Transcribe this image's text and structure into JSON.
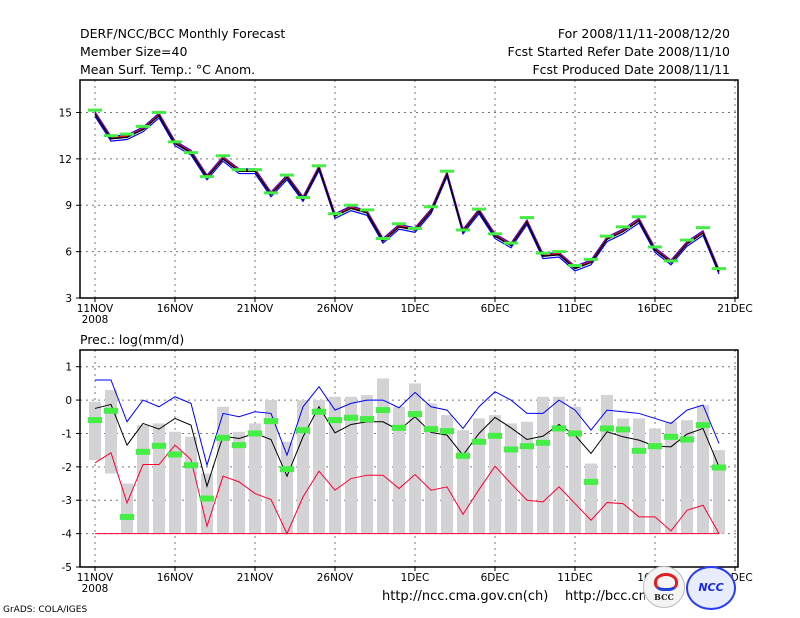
{
  "header": {
    "title": "DERF/NCC/BCC Monthly Forecast",
    "member_size": "Member Size=40",
    "variable": "Mean Surf. Temp.: °C Anom.",
    "period": "For 2008/11/11-2008/12/20",
    "start_date": "Fcst Started Refer Date 2008/11/10",
    "produced_date": "Fcst Produced Date 2008/11/11"
  },
  "footer": {
    "url_ncc": "http://ncc.cma.gov.cn(ch)",
    "url_bcc": "http://bcc.cma.gov.cn",
    "credit": "GrADS: COLA/IGES",
    "logo_bcc": "BCC",
    "logo_ncc": "NCC"
  },
  "colors": {
    "max": "#0000ff",
    "min": "#ff0033",
    "mean": "#000000",
    "obs": "#44ee44",
    "spread": "#d3d3d6"
  },
  "chart_data": [
    {
      "type": "line",
      "title": "Mean Surf. Temp.: °C Anom.",
      "x_ticks": [
        "11NOV",
        "16NOV",
        "21NOV",
        "26NOV",
        "1DEC",
        "6DEC",
        "11DEC",
        "16DEC",
        "21DEC"
      ],
      "x_tick_days": [
        0,
        5,
        10,
        15,
        20,
        25,
        30,
        35,
        40
      ],
      "year_label": "2008",
      "y_ticks": [
        3,
        6,
        9,
        12,
        15
      ],
      "ylim": [
        3,
        17.1
      ],
      "grid": true,
      "spread": 0.15,
      "series": [
        {
          "name": "ensemble-mean",
          "values": [
            14.9,
            13.3,
            13.4,
            13.9,
            14.8,
            13.0,
            12.4,
            10.8,
            12.0,
            11.2,
            11.2,
            9.7,
            10.8,
            9.4,
            11.4,
            8.3,
            8.8,
            8.5,
            6.7,
            7.6,
            7.4,
            8.6,
            11.0,
            7.3,
            8.6,
            7.0,
            6.4,
            7.9,
            5.7,
            5.8,
            4.9,
            5.3,
            6.8,
            7.3,
            8.0,
            6.1,
            5.3,
            6.5,
            7.2,
            4.7
          ]
        },
        {
          "name": "observed",
          "values": [
            15.15,
            13.5,
            13.6,
            14.1,
            15.0,
            13.1,
            12.4,
            10.85,
            12.2,
            11.3,
            11.3,
            9.8,
            10.95,
            9.5,
            11.55,
            8.45,
            9.0,
            8.7,
            6.85,
            7.8,
            7.5,
            8.9,
            11.2,
            7.4,
            8.75,
            7.15,
            6.55,
            8.2,
            5.9,
            6.0,
            5.1,
            5.5,
            7.0,
            7.6,
            8.25,
            6.3,
            5.4,
            6.75,
            7.55,
            4.9
          ]
        }
      ]
    },
    {
      "type": "line",
      "title": "Prec.: log(mm/d)",
      "x_ticks": [
        "11NOV",
        "16NOV",
        "21NOV",
        "26NOV",
        "1DEC",
        "6DEC",
        "11DEC",
        "16DEC",
        "21DEC"
      ],
      "x_tick_days": [
        0,
        5,
        10,
        15,
        20,
        25,
        30,
        35,
        40
      ],
      "year_label": "2008",
      "y_ticks": [
        1,
        0,
        -1,
        -2,
        -3,
        -4,
        -5
      ],
      "ylim": [
        -5,
        1.5
      ],
      "grid": true,
      "baseline": -4,
      "bars_top": [
        -0.05,
        0.3,
        -2.5,
        -0.75,
        -0.7,
        -0.95,
        -1.1,
        -2.2,
        -0.2,
        -0.95,
        -0.7,
        0.0,
        -1.25,
        0.0,
        0.0,
        0.1,
        0.1,
        0.15,
        0.65,
        -0.2,
        0.5,
        -0.1,
        -0.45,
        -0.9,
        -0.55,
        -0.45,
        -0.7,
        -0.65,
        0.1,
        0.1,
        -0.2,
        -1.9,
        0.15,
        -0.55,
        -0.55,
        -0.85,
        -0.65,
        -0.6,
        -0.15,
        -1.5
      ],
      "bars_bottom": [
        -1.8,
        -2.2,
        -4,
        -4,
        -4,
        -4,
        -4,
        -4,
        -4,
        -4,
        -4,
        -4,
        -4,
        -4,
        -4,
        -4,
        -4,
        -4,
        -4,
        -4,
        -4,
        -4,
        -4,
        -4,
        -4,
        -4,
        -4,
        -4,
        -4,
        -4,
        -4,
        -4,
        -4,
        -4,
        -4,
        -4,
        -4,
        -4,
        -4,
        -4
      ],
      "series": [
        {
          "name": "max",
          "values": [
            0.6,
            0.6,
            -0.65,
            0.0,
            -0.2,
            0.1,
            -0.1,
            -1.95,
            -0.4,
            -0.5,
            -0.35,
            -0.4,
            -1.65,
            -0.2,
            0.4,
            -0.3,
            -0.1,
            0.0,
            0.0,
            -0.23,
            0.23,
            -0.2,
            -0.3,
            -0.85,
            -0.2,
            0.25,
            0.0,
            -0.4,
            -0.4,
            0.0,
            -0.3,
            -0.9,
            -0.3,
            -0.35,
            -0.4,
            -0.55,
            -0.7,
            -0.3,
            -0.15,
            -1.3
          ]
        },
        {
          "name": "mean",
          "values": [
            -0.25,
            -0.13,
            -1.35,
            -0.7,
            -0.87,
            -0.55,
            -0.75,
            -2.58,
            -1.08,
            -1.15,
            -1.0,
            -1.18,
            -2.28,
            -1.1,
            -0.2,
            -0.98,
            -0.73,
            -0.65,
            -0.65,
            -0.9,
            -0.5,
            -0.97,
            -1.05,
            -1.65,
            -1.0,
            -0.52,
            -0.83,
            -1.18,
            -1.08,
            -0.73,
            -1.05,
            -1.6,
            -0.95,
            -1.1,
            -1.2,
            -1.38,
            -1.4,
            -1.02,
            -0.85,
            -2.0
          ]
        },
        {
          "name": "min",
          "values": [
            -1.88,
            -1.58,
            -3.08,
            -1.93,
            -1.93,
            -1.35,
            -1.78,
            -3.78,
            -2.28,
            -2.45,
            -2.8,
            -2.98,
            -4.0,
            -2.9,
            -2.13,
            -2.7,
            -2.35,
            -2.25,
            -2.25,
            -2.65,
            -2.23,
            -2.7,
            -2.6,
            -3.42,
            -2.68,
            -1.98,
            -2.5,
            -3.0,
            -3.05,
            -2.6,
            -3.1,
            -3.6,
            -3.07,
            -3.1,
            -3.5,
            -3.5,
            -3.92,
            -3.3,
            -3.15,
            -4.0
          ]
        },
        {
          "name": "observed",
          "values": [
            -0.6,
            -0.32,
            -3.5,
            -1.55,
            -1.37,
            -1.63,
            -1.95,
            -2.95,
            -1.13,
            -1.35,
            -1.0,
            -0.63,
            -2.07,
            -0.9,
            -0.35,
            -0.6,
            -0.53,
            -0.57,
            -0.3,
            -0.83,
            -0.42,
            -0.87,
            -0.93,
            -1.67,
            -1.25,
            -1.07,
            -1.48,
            -1.38,
            -1.28,
            -0.85,
            -1.0,
            -2.45,
            -0.85,
            -0.88,
            -1.52,
            -1.38,
            -1.1,
            -1.18,
            -0.75,
            -2.02
          ]
        }
      ]
    }
  ]
}
